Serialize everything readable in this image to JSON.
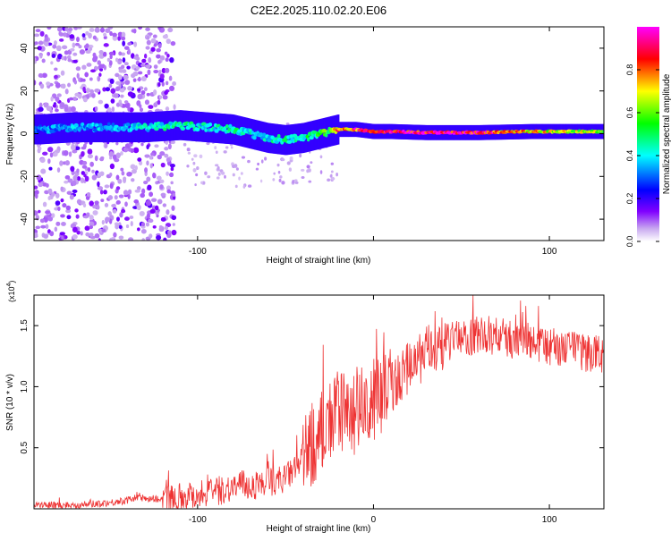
{
  "title": "C2E2.2025.110.02.20.E06",
  "chart_data": [
    {
      "type": "heatmap",
      "xlabel": "Height of straight line (km)",
      "ylabel": "Frequency (Hz)",
      "xlim": [
        -193,
        131
      ],
      "ylim": [
        -50,
        50
      ],
      "xticks": [
        -100,
        0,
        100
      ],
      "xtick_labels": [
        "-100",
        "",
        "100"
      ],
      "yticks": [
        -40,
        -20,
        0,
        20,
        40
      ],
      "colorbar": {
        "label": "Normalized spectral amplitude",
        "range": [
          0,
          1
        ],
        "ticks": [
          0.0,
          0.2,
          0.4,
          0.6,
          0.8
        ],
        "tick_labels": [
          "0.0",
          "0.2",
          "0.4",
          "0.6",
          "0.8"
        ],
        "colors": [
          "#ffffff",
          "#c8a8f0",
          "#8000ff",
          "#0000ff",
          "#00ffff",
          "#00ff00",
          "#ffff00",
          "#ff0000",
          "#ff00ff"
        ]
      },
      "ridge": {
        "x": [
          -190,
          -170,
          -150,
          -130,
          -110,
          -95,
          -80,
          -70,
          -60,
          -50,
          -40,
          -30,
          -25,
          -20,
          -10,
          0,
          10,
          30,
          60,
          90,
          110,
          131
        ],
        "y": [
          2,
          3,
          3,
          3,
          4,
          3,
          2,
          0,
          -2,
          -3,
          -2,
          0,
          1,
          2,
          2,
          1,
          1,
          0.5,
          0.5,
          1,
          1,
          1
        ],
        "amplitude": [
          0.3,
          0.35,
          0.35,
          0.4,
          0.45,
          0.4,
          0.45,
          0.4,
          0.4,
          0.45,
          0.45,
          0.5,
          0.6,
          0.8,
          0.85,
          0.8,
          0.9,
          0.95,
          0.9,
          0.7,
          0.65,
          0.6
        ]
      }
    },
    {
      "type": "line",
      "xlabel": "Height of straight line (km)",
      "ylabel": "SNR (10 * v/v)",
      "scale_note": "(x10",
      "scale_exp": "4",
      "xlim": [
        -193,
        131
      ],
      "ylim": [
        0,
        1.75
      ],
      "xticks": [
        -100,
        0,
        100
      ],
      "xtick_labels": [
        "-100",
        "0",
        "100"
      ],
      "yticks": [
        0.5,
        1.0,
        1.5
      ],
      "ytick_labels": [
        "0.5",
        "1.0",
        "1.5"
      ],
      "color": "#ee3333",
      "series": [
        {
          "x": [
            -193,
            -170,
            -150,
            -140,
            -135,
            -120,
            -100,
            -90,
            -80,
            -75,
            -70,
            -60,
            -50,
            -45,
            -40,
            -35,
            -30,
            -25,
            -20,
            -15,
            -10,
            0,
            10,
            20,
            30,
            40,
            50,
            60,
            70,
            80,
            90,
            100,
            110,
            120,
            131
          ],
          "y": [
            0.03,
            0.03,
            0.05,
            0.07,
            0.09,
            0.08,
            0.12,
            0.14,
            0.18,
            0.2,
            0.18,
            0.22,
            0.25,
            0.32,
            0.42,
            0.52,
            0.62,
            0.7,
            0.8,
            0.75,
            0.8,
            0.88,
            1.0,
            1.15,
            1.28,
            1.36,
            1.4,
            1.42,
            1.42,
            1.38,
            1.36,
            1.33,
            1.3,
            1.28,
            1.27
          ]
        }
      ]
    }
  ]
}
